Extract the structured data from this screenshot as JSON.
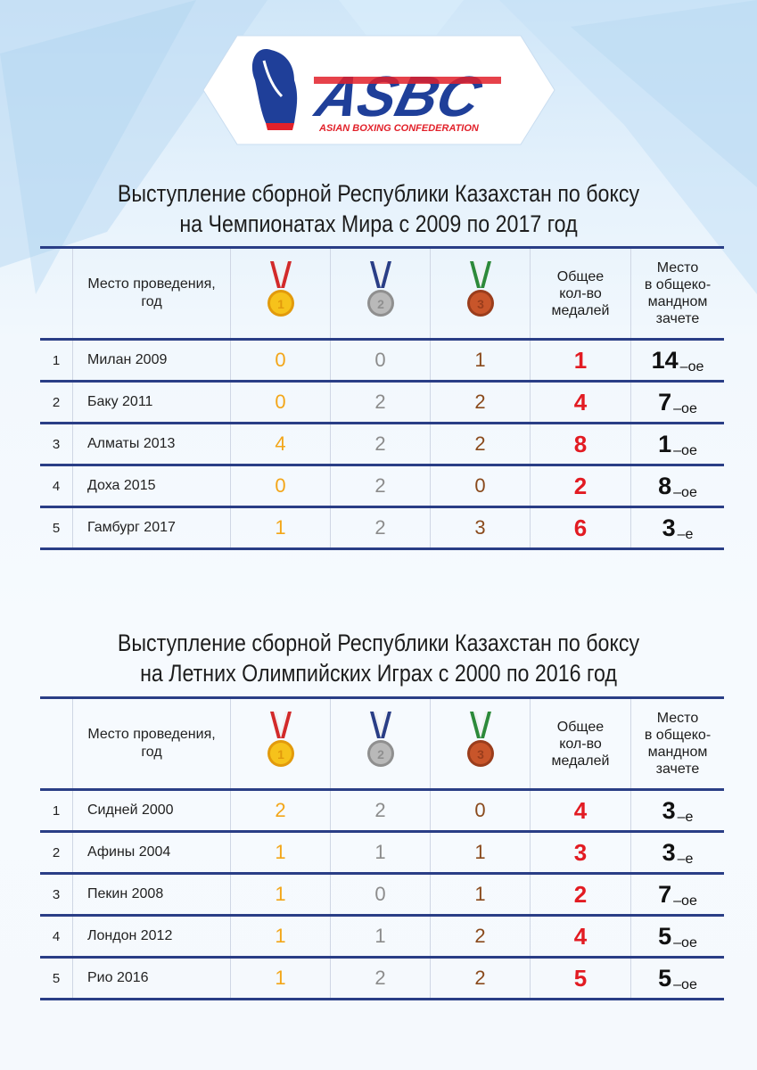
{
  "logo": {
    "letters": "ASBC",
    "subtitle": "ASIAN BOXING CONFEDERATION",
    "colors": {
      "blue": "#1f3f99",
      "red": "#e2212a"
    }
  },
  "colors": {
    "table_border": "#2a3e86",
    "gold": "#f3a619",
    "silver": "#8c8c8c",
    "bronze": "#8a4a1c",
    "total": "#e21b22"
  },
  "header": {
    "venue_label_line1": "Место проведения,",
    "venue_label_line2": "год",
    "total_label_line1": "Общее",
    "total_label_line2": "кол-во",
    "total_label_line3": "медалей",
    "place_label_line1": "Место",
    "place_label_line2": "в общеко-",
    "place_label_line3": "мандном",
    "place_label_line4": "зачете",
    "gold_medal_number": "1",
    "silver_medal_number": "2",
    "bronze_medal_number": "3"
  },
  "tables": [
    {
      "title_line1": "Выступление сборной Республики Казахстан по боксу",
      "title_line2": "на Чемпионатах Мира с 2009 по  2017 год",
      "rows": [
        {
          "idx": "1",
          "venue": "Милан 2009",
          "gold": "0",
          "silver": "0",
          "bronze": "1",
          "total": "1",
          "place": "14",
          "place_suffix": "–oe"
        },
        {
          "idx": "2",
          "venue": "Баку 2011",
          "gold": "0",
          "silver": "2",
          "bronze": "2",
          "total": "4",
          "place": "7",
          "place_suffix": "–oe"
        },
        {
          "idx": "3",
          "venue": "Алматы 2013",
          "gold": "4",
          "silver": "2",
          "bronze": "2",
          "total": "8",
          "place": "1",
          "place_suffix": "–oe"
        },
        {
          "idx": "4",
          "venue": "Доха 2015",
          "gold": "0",
          "silver": "2",
          "bronze": "0",
          "total": "2",
          "place": "8",
          "place_suffix": "–oe"
        },
        {
          "idx": "5",
          "venue": "Гамбург 2017",
          "gold": "1",
          "silver": "2",
          "bronze": "3",
          "total": "6",
          "place": "3",
          "place_suffix": "–e"
        }
      ]
    },
    {
      "title_line1": "Выступление сборной Республики Казахстан по боксу",
      "title_line2": "на Летних Олимпийских Играх с 2000 по  2016 год",
      "rows": [
        {
          "idx": "1",
          "venue": "Сидней 2000",
          "gold": "2",
          "silver": "2",
          "bronze": "0",
          "total": "4",
          "place": "3",
          "place_suffix": "–e"
        },
        {
          "idx": "2",
          "venue": "Афины 2004",
          "gold": "1",
          "silver": "1",
          "bronze": "1",
          "total": "3",
          "place": "3",
          "place_suffix": "–e"
        },
        {
          "idx": "3",
          "venue": "Пекин 2008",
          "gold": "1",
          "silver": "0",
          "bronze": "1",
          "total": "2",
          "place": "7",
          "place_suffix": "–oe"
        },
        {
          "idx": "4",
          "venue": "Лондон 2012",
          "gold": "1",
          "silver": "1",
          "bronze": "2",
          "total": "4",
          "place": "5",
          "place_suffix": "–oe"
        },
        {
          "idx": "5",
          "venue": "Рио 2016",
          "gold": "1",
          "silver": "2",
          "bronze": "2",
          "total": "5",
          "place": "5",
          "place_suffix": "–oe"
        }
      ]
    }
  ]
}
